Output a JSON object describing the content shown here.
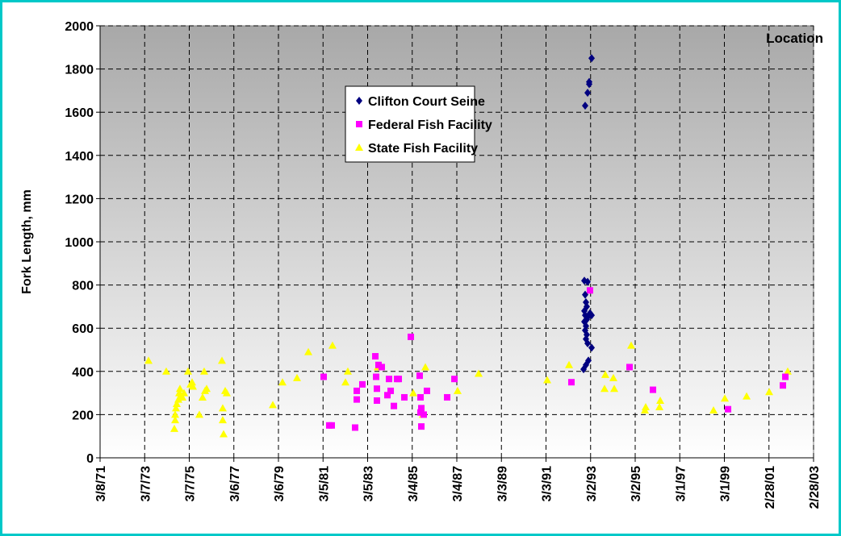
{
  "chart_data": {
    "type": "scatter",
    "title": "Location",
    "y_label": "Fork Length, mm",
    "xlim": [
      26000,
      37680
    ],
    "xticks": [
      {
        "value": 26000,
        "label": "3/8/71"
      },
      {
        "value": 26730,
        "label": "3/7/73"
      },
      {
        "value": 27460,
        "label": "3/7/75"
      },
      {
        "value": 28190,
        "label": "3/6/77"
      },
      {
        "value": 28920,
        "label": "3/6/79"
      },
      {
        "value": 29650,
        "label": "3/5/81"
      },
      {
        "value": 30380,
        "label": "3/5/83"
      },
      {
        "value": 31110,
        "label": "3/4/85"
      },
      {
        "value": 31840,
        "label": "3/4/87"
      },
      {
        "value": 32570,
        "label": "3/3/89"
      },
      {
        "value": 33300,
        "label": "3/3/91"
      },
      {
        "value": 34030,
        "label": "3/2/93"
      },
      {
        "value": 34760,
        "label": "3/2/95"
      },
      {
        "value": 35490,
        "label": "3/1/97"
      },
      {
        "value": 36220,
        "label": "3/1/99"
      },
      {
        "value": 36950,
        "label": "2/28/01"
      },
      {
        "value": 37680,
        "label": "2/28/03"
      }
    ],
    "ylim": [
      0,
      2000
    ],
    "yticks": [
      0,
      200,
      400,
      600,
      800,
      1000,
      1200,
      1400,
      1600,
      1800,
      2000
    ],
    "grid": true,
    "series": [
      {
        "name": "Clifton Court Seine",
        "color": "#000080",
        "marker": "diamond",
        "x": [
          34047,
          34007,
          34007,
          33981,
          33941,
          33928,
          33981,
          33941,
          33954,
          33967,
          33928,
          33941,
          33981,
          33967,
          33928,
          33954,
          33941,
          33967,
          33954,
          33981,
          34047,
          34020,
          34047,
          33994,
          33954,
          33915
        ],
        "values": [
          1850,
          1740,
          1730,
          1690,
          1630,
          820,
          815,
          755,
          720,
          700,
          680,
          660,
          650,
          640,
          630,
          610,
          590,
          570,
          550,
          530,
          510,
          670,
          660,
          450,
          430,
          410
        ]
      },
      {
        "name": "Federal Fish Facility",
        "color": "#ff00ff",
        "marker": "square",
        "x": [
          29660,
          29752,
          29792,
          30175,
          30202,
          30202,
          30294,
          30506,
          30519,
          30532,
          30532,
          30558,
          30611,
          30704,
          30730,
          30757,
          30810,
          30862,
          30889,
          30981,
          31087,
          31232,
          31246,
          31246,
          31259,
          31259,
          31298,
          31351,
          31682,
          31801,
          33716,
          34020,
          34668,
          35051,
          36280,
          37178,
          37218
        ],
        "values": [
          375,
          150,
          150,
          140,
          310,
          270,
          340,
          470,
          375,
          320,
          265,
          430,
          420,
          290,
          365,
          310,
          240,
          365,
          365,
          280,
          560,
          380,
          280,
          210,
          145,
          230,
          200,
          310,
          280,
          365,
          350,
          775,
          420,
          315,
          225,
          335,
          375
        ]
      },
      {
        "name": "State Fish Facility",
        "color": "#ffff00",
        "marker": "triangle",
        "x": [
          26793,
          27083,
          27216,
          27229,
          27229,
          27242,
          27255,
          27282,
          27295,
          27308,
          27321,
          27348,
          27374,
          27440,
          27480,
          27506,
          27519,
          27625,
          27678,
          27704,
          27718,
          27744,
          27995,
          28008,
          28008,
          28022,
          28048,
          28074,
          28828,
          28986,
          29224,
          29409,
          29805,
          30017,
          30056,
          30545,
          31127,
          31285,
          31325,
          31853,
          32197,
          33320,
          33677,
          34258,
          34271,
          34403,
          34417,
          34694,
          34919,
          34932,
          35157,
          35170,
          36042,
          36227,
          36584,
          36954,
          37257
        ],
        "values": [
          450,
          400,
          135,
          175,
          200,
          230,
          250,
          270,
          300,
          320,
          290,
          280,
          300,
          400,
          340,
          350,
          330,
          200,
          280,
          400,
          310,
          320,
          450,
          230,
          175,
          110,
          310,
          300,
          245,
          350,
          370,
          490,
          520,
          350,
          400,
          420,
          300,
          200,
          420,
          310,
          390,
          360,
          430,
          320,
          385,
          370,
          320,
          520,
          220,
          235,
          235,
          265,
          220,
          275,
          285,
          305,
          400
        ]
      }
    ]
  }
}
